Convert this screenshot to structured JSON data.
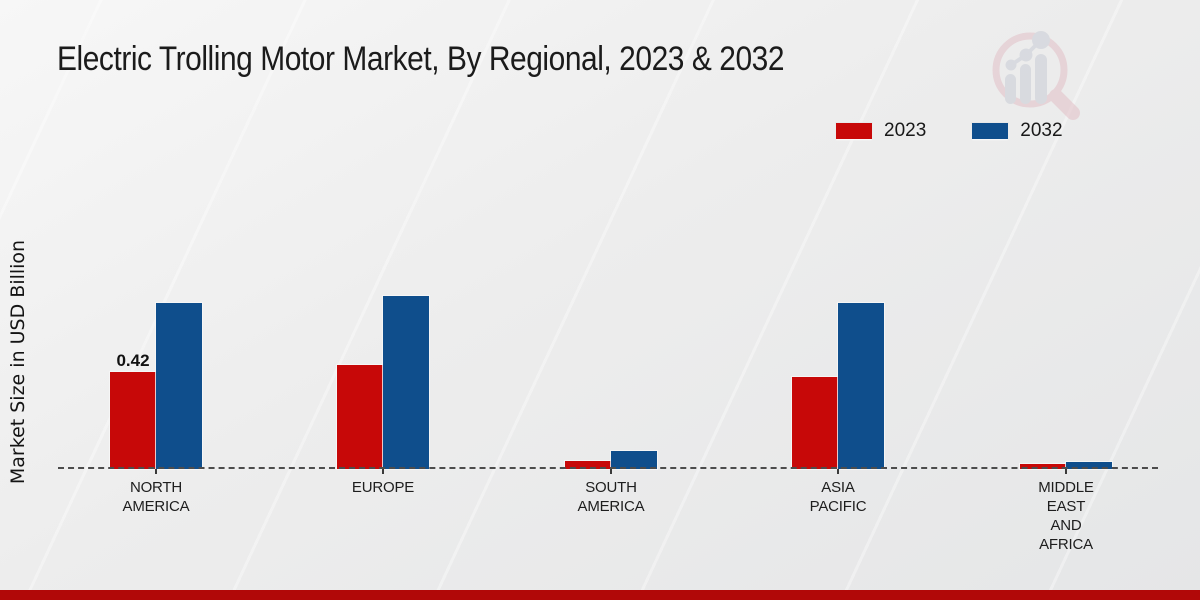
{
  "title": "Electric Trolling Motor Market, By Regional, 2023 & 2032",
  "y_axis_label": "Market Size in USD Billion",
  "legend": [
    {
      "label": "2023",
      "color": "#c70808"
    },
    {
      "label": "2032",
      "color": "#0f4e8c"
    }
  ],
  "colors": {
    "bar_2023": "#c70808",
    "bar_2032": "#0f4e8c",
    "bottom_accent": "#b10808",
    "baseline": "#4c4c4c",
    "text": "#1b1b1b",
    "background": "#ececec"
  },
  "watermark_icon": "magnifier-bar-chart-watermark",
  "chart_data": {
    "type": "bar",
    "title": "Electric Trolling Motor Market, By Regional, 2023 & 2032",
    "xlabel": "",
    "ylabel": "Market Size in USD Billion",
    "categories": [
      "NORTH AMERICA",
      "EUROPE",
      "SOUTH AMERICA",
      "ASIA PACIFIC",
      "MIDDLE EAST AND AFRICA"
    ],
    "category_label_lines": [
      [
        "NORTH",
        "AMERICA"
      ],
      [
        "EUROPE"
      ],
      [
        "SOUTH",
        "AMERICA"
      ],
      [
        "ASIA",
        "PACIFIC"
      ],
      [
        "MIDDLE",
        "EAST",
        "AND",
        "AFRICA"
      ]
    ],
    "series": [
      {
        "name": "2023",
        "color": "#c70808",
        "values": [
          0.42,
          0.45,
          0.035,
          0.4,
          0.02
        ]
      },
      {
        "name": "2032",
        "color": "#0f4e8c",
        "values": [
          0.72,
          0.75,
          0.08,
          0.72,
          0.03
        ]
      }
    ],
    "ylim": [
      0,
      0.8
    ],
    "grid": false,
    "y_axis_ticks_visible": false,
    "baseline_style": "dashed",
    "legend_position": "top-right",
    "annotations": [
      {
        "category": "NORTH AMERICA",
        "series": "2023",
        "text": "0.42"
      }
    ]
  }
}
